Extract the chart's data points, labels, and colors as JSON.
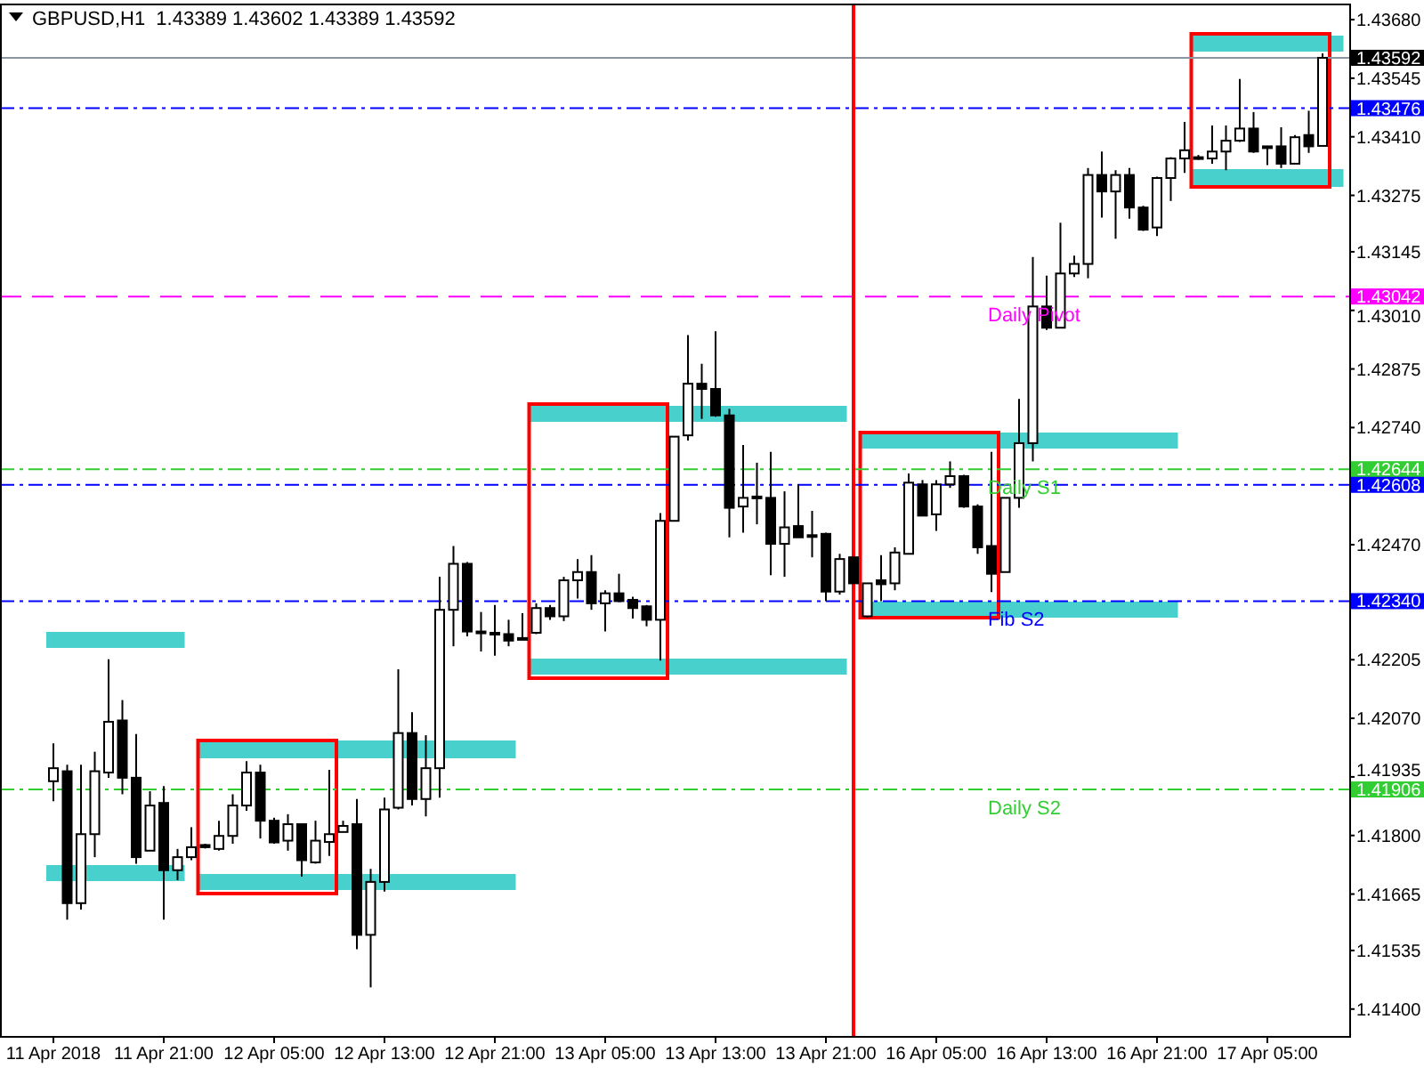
{
  "chart_data": {
    "type": "candlestick",
    "title": "GBPUSD,H1  1.43389 1.43602 1.43389 1.43592",
    "categories": [
      "11 Apr 2018",
      null,
      null,
      null,
      null,
      null,
      null,
      null,
      "11 Apr 21:00",
      null,
      null,
      null,
      null,
      null,
      null,
      null,
      "12 Apr 05:00",
      null,
      null,
      null,
      null,
      null,
      null,
      null,
      "12 Apr 13:00",
      null,
      null,
      null,
      null,
      null,
      null,
      null,
      "12 Apr 21:00",
      null,
      null,
      null,
      null,
      null,
      null,
      null,
      "13 Apr 05:00",
      null,
      null,
      null,
      null,
      null,
      null,
      null,
      "13 Apr 13:00",
      null,
      null,
      null,
      null,
      null,
      null,
      null,
      "13 Apr 21:00",
      null,
      null,
      null,
      null,
      null,
      null,
      null,
      "16 Apr 05:00",
      null,
      null,
      null,
      null,
      null,
      null,
      null,
      "16 Apr 13:00",
      null,
      null,
      null,
      null,
      null,
      null,
      null,
      "16 Apr 21:00",
      null,
      null,
      null,
      null,
      null,
      null,
      null,
      "17 Apr 05:00",
      null,
      null,
      null,
      null
    ],
    "ohlc": [
      [
        1.41925,
        1.42012,
        1.41879,
        1.41955
      ],
      [
        1.41948,
        1.41963,
        1.41606,
        1.41644
      ],
      [
        1.41644,
        1.41963,
        1.41629,
        1.41803
      ],
      [
        1.41803,
        1.41993,
        1.4175,
        1.41948
      ],
      [
        1.41945,
        1.42206,
        1.41933,
        1.42062
      ],
      [
        1.42065,
        1.42112,
        1.41895,
        1.41933
      ],
      [
        1.41933,
        1.42034,
        1.41735,
        1.4175
      ],
      [
        1.41765,
        1.41902,
        1.41765,
        1.41869
      ],
      [
        1.41875,
        1.41914,
        1.41606,
        1.4172
      ],
      [
        1.4172,
        1.41769,
        1.41697,
        1.4175
      ],
      [
        1.4175,
        1.41819,
        1.41743,
        1.41773
      ],
      [
        1.41778,
        1.41781,
        1.4177,
        1.41773
      ],
      [
        1.41769,
        1.41834,
        1.41765,
        1.41799
      ],
      [
        1.41799,
        1.41895,
        1.41781,
        1.41869
      ],
      [
        1.41869,
        1.41971,
        1.41857,
        1.41945
      ],
      [
        1.41945,
        1.41963,
        1.41793,
        1.41834
      ],
      [
        1.41834,
        1.41841,
        1.41781,
        1.41784
      ],
      [
        1.41788,
        1.41849,
        1.41765,
        1.41826
      ],
      [
        1.41826,
        1.41826,
        1.41705,
        1.41743
      ],
      [
        1.41738,
        1.41834,
        1.41735,
        1.41788
      ],
      [
        1.41785,
        1.41951,
        1.41753,
        1.41803
      ],
      [
        1.41808,
        1.41834,
        1.41808,
        1.41822
      ],
      [
        1.41826,
        1.41884,
        1.41538,
        1.41571
      ],
      [
        1.41571,
        1.41723,
        1.4145,
        1.41693
      ],
      [
        1.41693,
        1.41887,
        1.41671,
        1.4186
      ],
      [
        1.41864,
        1.42183,
        1.4186,
        1.42036
      ],
      [
        1.42036,
        1.42084,
        1.41869,
        1.41884
      ],
      [
        1.41884,
        1.42031,
        1.41844,
        1.41955
      ],
      [
        1.41955,
        1.42396,
        1.41887,
        1.4232
      ],
      [
        1.4232,
        1.42467,
        1.42236,
        1.42426
      ],
      [
        1.42426,
        1.4243,
        1.42259,
        1.4227
      ],
      [
        1.4227,
        1.42315,
        1.42224,
        1.4227
      ],
      [
        1.42267,
        1.42331,
        1.42214,
        1.42267
      ],
      [
        1.42264,
        1.42297,
        1.42236,
        1.42249
      ],
      [
        1.42255,
        1.42312,
        1.42252,
        1.42255
      ],
      [
        1.42267,
        1.42335,
        1.42264,
        1.42324
      ],
      [
        1.42324,
        1.42331,
        1.42297,
        1.42305
      ],
      [
        1.42305,
        1.42396,
        1.42294,
        1.42388
      ],
      [
        1.42388,
        1.42437,
        1.42346,
        1.42407
      ],
      [
        1.42407,
        1.42446,
        1.4232,
        1.42335
      ],
      [
        1.42335,
        1.42365,
        1.4227,
        1.42358
      ],
      [
        1.42358,
        1.42403,
        1.4234,
        1.4234
      ],
      [
        1.42343,
        1.4235,
        1.423,
        1.42324
      ],
      [
        1.42328,
        1.42331,
        1.42282,
        1.42297
      ],
      [
        1.42297,
        1.42543,
        1.42203,
        1.42525
      ],
      [
        1.42525,
        1.42719,
        1.42525,
        1.42719
      ],
      [
        1.42722,
        1.42953,
        1.4271,
        1.42841
      ],
      [
        1.42841,
        1.42887,
        1.4276,
        1.42829
      ],
      [
        1.42829,
        1.42962,
        1.42765,
        1.42768
      ],
      [
        1.42768,
        1.42783,
        1.42487,
        1.42555
      ],
      [
        1.42558,
        1.427,
        1.42498,
        1.42578
      ],
      [
        1.42581,
        1.42659,
        1.42517,
        1.42581
      ],
      [
        1.42578,
        1.42684,
        1.424,
        1.42472
      ],
      [
        1.42472,
        1.42593,
        1.42396,
        1.4251
      ],
      [
        1.42513,
        1.42609,
        1.42487,
        1.42487
      ],
      [
        1.42492,
        1.42548,
        1.42441,
        1.42492
      ],
      [
        1.42495,
        1.42498,
        1.4234,
        1.42362
      ],
      [
        1.42362,
        1.42449,
        1.42355,
        1.42437
      ],
      [
        1.42441,
        1.42441,
        1.42381,
        1.42381
      ],
      [
        1.42305,
        1.42381,
        1.42302,
        1.42381
      ],
      [
        1.42388,
        1.42446,
        1.4234,
        1.42379
      ],
      [
        1.42381,
        1.42464,
        1.42365,
        1.42452
      ],
      [
        1.42449,
        1.42634,
        1.42449,
        1.42613
      ],
      [
        1.42609,
        1.42619,
        1.42537,
        1.42537
      ],
      [
        1.4254,
        1.42619,
        1.42502,
        1.42609
      ],
      [
        1.42609,
        1.42662,
        1.42601,
        1.42628
      ],
      [
        1.42628,
        1.42631,
        1.42555,
        1.42558
      ],
      [
        1.42558,
        1.42563,
        1.42449,
        1.42464
      ],
      [
        1.42467,
        1.42684,
        1.42361,
        1.42403
      ],
      [
        1.42407,
        1.42578,
        1.42407,
        1.42578
      ],
      [
        1.42578,
        1.42806,
        1.42555,
        1.42704
      ],
      [
        1.42704,
        1.43133,
        1.42662,
        1.43019
      ],
      [
        1.43019,
        1.4309,
        1.42965,
        1.4297
      ],
      [
        1.4297,
        1.43212,
        1.4297,
        1.43095
      ],
      [
        1.43095,
        1.43136,
        1.43087,
        1.43117
      ],
      [
        1.43117,
        1.43338,
        1.43084,
        1.43322
      ],
      [
        1.43322,
        1.43376,
        1.43224,
        1.43284
      ],
      [
        1.43284,
        1.43333,
        1.43175,
        1.43322
      ],
      [
        1.43322,
        1.43338,
        1.43221,
        1.43247
      ],
      [
        1.43247,
        1.43251,
        1.43193,
        1.43196
      ],
      [
        1.43201,
        1.43318,
        1.43181,
        1.43315
      ],
      [
        1.43315,
        1.43363,
        1.43262,
        1.4336
      ],
      [
        1.4336,
        1.43444,
        1.43327,
        1.43379
      ],
      [
        1.43363,
        1.43368,
        1.43357,
        1.43363
      ],
      [
        1.4336,
        1.43436,
        1.43348,
        1.43376
      ],
      [
        1.43376,
        1.43436,
        1.43333,
        1.43401
      ],
      [
        1.43401,
        1.43543,
        1.43398,
        1.43429
      ],
      [
        1.43429,
        1.43467,
        1.43373,
        1.43376
      ],
      [
        1.43388,
        1.43388,
        1.43345,
        1.43388
      ],
      [
        1.43388,
        1.43432,
        1.43338,
        1.43348
      ],
      [
        1.43348,
        1.43414,
        1.43348,
        1.43409
      ],
      [
        1.43414,
        1.4347,
        1.43373,
        1.43388
      ],
      [
        1.43389,
        1.43602,
        1.43389,
        1.43592
      ]
    ],
    "ylim": [
      1.41338,
      1.43717
    ],
    "yticks": [
      {
        "value": 1.4368,
        "label": "1.43680"
      },
      {
        "value": 1.43545,
        "label": "1.43545"
      },
      {
        "value": 1.4341,
        "label": "1.43410"
      },
      {
        "value": 1.43275,
        "label": "1.43275"
      },
      {
        "value": 1.43145,
        "label": "1.43145"
      },
      {
        "value": 1.4301,
        "label": "1.43010"
      },
      {
        "value": 1.42875,
        "label": "1.42875"
      },
      {
        "value": 1.4274,
        "label": "1.42740"
      },
      {
        "value": 1.4247,
        "label": "1.42470"
      },
      {
        "value": 1.42205,
        "label": "1.42205"
      },
      {
        "value": 1.4207,
        "label": "1.42070"
      },
      {
        "value": 1.41935,
        "label": "1.41935"
      },
      {
        "value": 1.418,
        "label": "1.41800"
      },
      {
        "value": 1.41665,
        "label": "1.41665"
      },
      {
        "value": 1.41535,
        "label": "1.41535"
      },
      {
        "value": 1.414,
        "label": "1.41400"
      },
      {
        "value": 1.43592,
        "label": "1.43592"
      },
      {
        "value": 1.43476,
        "label": "1.43476"
      },
      {
        "value": 1.43042,
        "label": "1.43042"
      },
      {
        "value": 1.42644,
        "label": "1.42644"
      },
      {
        "value": 1.42608,
        "label": "1.42608"
      },
      {
        "value": 1.4234,
        "label": "1.42340"
      },
      {
        "value": 1.41906,
        "label": "1.41906"
      }
    ],
    "ref_lines": [
      {
        "axis": "y",
        "value": 1.43592,
        "color": "#8c96a0",
        "line_style": "solid"
      },
      {
        "axis": "y",
        "value": 1.43476,
        "color": "#0000ff",
        "line_style": "dashdot"
      },
      {
        "axis": "y",
        "value": 1.43042,
        "label": "Daily Pivot",
        "color": "#ff00ff",
        "line_style": "dashed"
      },
      {
        "axis": "y",
        "value": 1.42644,
        "label": "Daily S1",
        "color": "#32cd32",
        "line_style": "dashdot"
      },
      {
        "axis": "y",
        "value": 1.42608,
        "color": "#0000ff",
        "line_style": "dashdot"
      },
      {
        "axis": "y",
        "value": 1.4234,
        "label": "Fib S2",
        "color": "#0000ff",
        "line_style": "dashdot"
      },
      {
        "axis": "y",
        "value": 1.41906,
        "label": "Daily S2",
        "color": "#32cd32",
        "line_style": "dashdot"
      }
    ]
  }
}
